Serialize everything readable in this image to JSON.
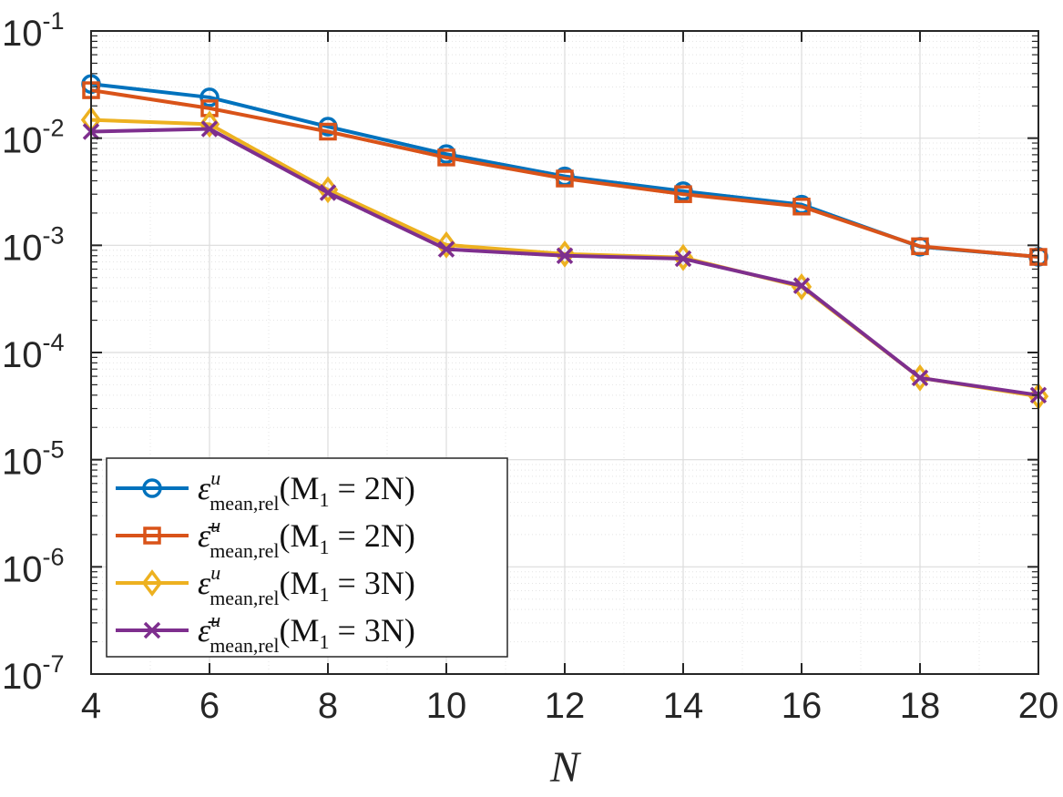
{
  "chart_data": {
    "type": "line",
    "title": "",
    "xlabel": "N",
    "ylabel": "",
    "yscale": "log",
    "x": [
      4,
      6,
      8,
      10,
      12,
      14,
      16,
      18,
      20
    ],
    "xlim": [
      4,
      20
    ],
    "ylim": [
      1e-07,
      0.1
    ],
    "xticks": [
      "4",
      "6",
      "8",
      "10",
      "12",
      "14",
      "16",
      "18",
      "20"
    ],
    "yticks": [
      {
        "base": "10",
        "exp": "-7"
      },
      {
        "base": "10",
        "exp": "-6"
      },
      {
        "base": "10",
        "exp": "-5"
      },
      {
        "base": "10",
        "exp": "-4"
      },
      {
        "base": "10",
        "exp": "-3"
      },
      {
        "base": "10",
        "exp": "-2"
      },
      {
        "base": "10",
        "exp": "-1"
      }
    ],
    "grid": true,
    "legend_position": "bottom-left",
    "series": [
      {
        "name": "ε^u_mean,rel(M_1 = 2N)",
        "legend": {
          "symbol": "ε",
          "sup": "u",
          "sub": "mean,rel",
          "args": "(M",
          "argsub": "1",
          "argrest": " = 2N)"
        },
        "color": "#0072BD",
        "marker": "circle",
        "values": [
          0.032,
          0.024,
          0.0128,
          0.0071,
          0.0044,
          0.0032,
          0.0024,
          0.00097,
          0.00078
        ]
      },
      {
        "name": "ε̄^u_mean,rel(M_1 = 2N)",
        "legend": {
          "symbol": "ε̄",
          "sup": "u",
          "sub": "mean,rel",
          "args": "(M",
          "argsub": "1",
          "argrest": " = 2N)"
        },
        "color": "#D95319",
        "marker": "square",
        "values": [
          0.028,
          0.019,
          0.0115,
          0.0066,
          0.0042,
          0.003,
          0.0023,
          0.00098,
          0.00078
        ]
      },
      {
        "name": "ε^u_mean,rel(M_1 = 3N)",
        "legend": {
          "symbol": "ε",
          "sup": "u",
          "sub": "mean,rel",
          "args": "(M",
          "argsub": "1",
          "argrest": " = 3N)"
        },
        "color": "#EDB120",
        "marker": "diamond",
        "values": [
          0.0148,
          0.0135,
          0.0033,
          0.00101,
          0.00083,
          0.00077,
          0.00041,
          5.8e-05,
          3.9e-05
        ]
      },
      {
        "name": "ε̄^u_mean,rel(M_1 = 3N)",
        "legend": {
          "symbol": "ε̄",
          "sup": "u",
          "sub": "mean,rel",
          "args": "(M",
          "argsub": "1",
          "argrest": " = 3N)"
        },
        "color": "#7E2F8E",
        "marker": "x",
        "values": [
          0.0115,
          0.0122,
          0.0031,
          0.00092,
          0.0008,
          0.00075,
          0.00042,
          5.8e-05,
          4e-05
        ]
      }
    ]
  }
}
